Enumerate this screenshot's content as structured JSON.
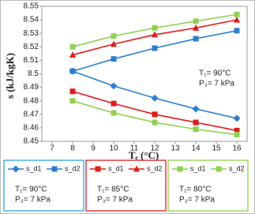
{
  "chart_data": {
    "type": "line",
    "y_label": "s (kJ/kgK)",
    "x_label": "Tₑ (°C)",
    "annotation": [
      "T₁= 90°C",
      "P₃= 7 kPa"
    ],
    "x": [
      8,
      10,
      12,
      14,
      16
    ],
    "xlim": [
      6.5,
      16.5
    ],
    "xticks": [
      7,
      8,
      9,
      10,
      11,
      12,
      13,
      14,
      15,
      16
    ],
    "ylim": [
      8.45,
      8.55
    ],
    "yticks": [
      8.45,
      8.46,
      8.47,
      8.48,
      8.49,
      8.5,
      8.51,
      8.52,
      8.53,
      8.54,
      8.55
    ],
    "grid": false,
    "series": [
      {
        "name": "s_d1",
        "color": "#2b7fd0",
        "marker": "diamond",
        "values": [
          8.502,
          8.491,
          8.482,
          8.474,
          8.467
        ]
      },
      {
        "name": "s_d2",
        "color": "#2b7fd0",
        "marker": "square",
        "values": [
          8.502,
          8.511,
          8.519,
          8.526,
          8.532
        ]
      },
      {
        "name": "s_d1",
        "color": "#e31a1c",
        "marker": "square",
        "values": [
          8.487,
          8.478,
          8.47,
          8.464,
          8.458
        ]
      },
      {
        "name": "s_d2",
        "color": "#e31a1c",
        "marker": "triangle",
        "values": [
          8.514,
          8.522,
          8.529,
          8.534,
          8.54
        ]
      },
      {
        "name": "s_d1",
        "color": "#8fd14f",
        "marker": "square",
        "values": [
          8.48,
          8.471,
          8.464,
          8.459,
          8.455
        ]
      },
      {
        "name": "s_d2",
        "color": "#8fd14f",
        "marker": "square",
        "values": [
          8.52,
          8.528,
          8.534,
          8.539,
          8.544
        ]
      }
    ],
    "legend_groups": [
      {
        "color": "#2fa3e0",
        "lines": [
          "T₁= 90°C",
          "P₃= 7 kPa"
        ]
      },
      {
        "color": "#e31a1c",
        "lines": [
          "T₁= 85°C",
          "P₃= 7 kPa"
        ]
      },
      {
        "color": "#8fd14f",
        "lines": [
          "T₁= 80°C",
          "P₃= 7 kPa"
        ]
      }
    ]
  }
}
